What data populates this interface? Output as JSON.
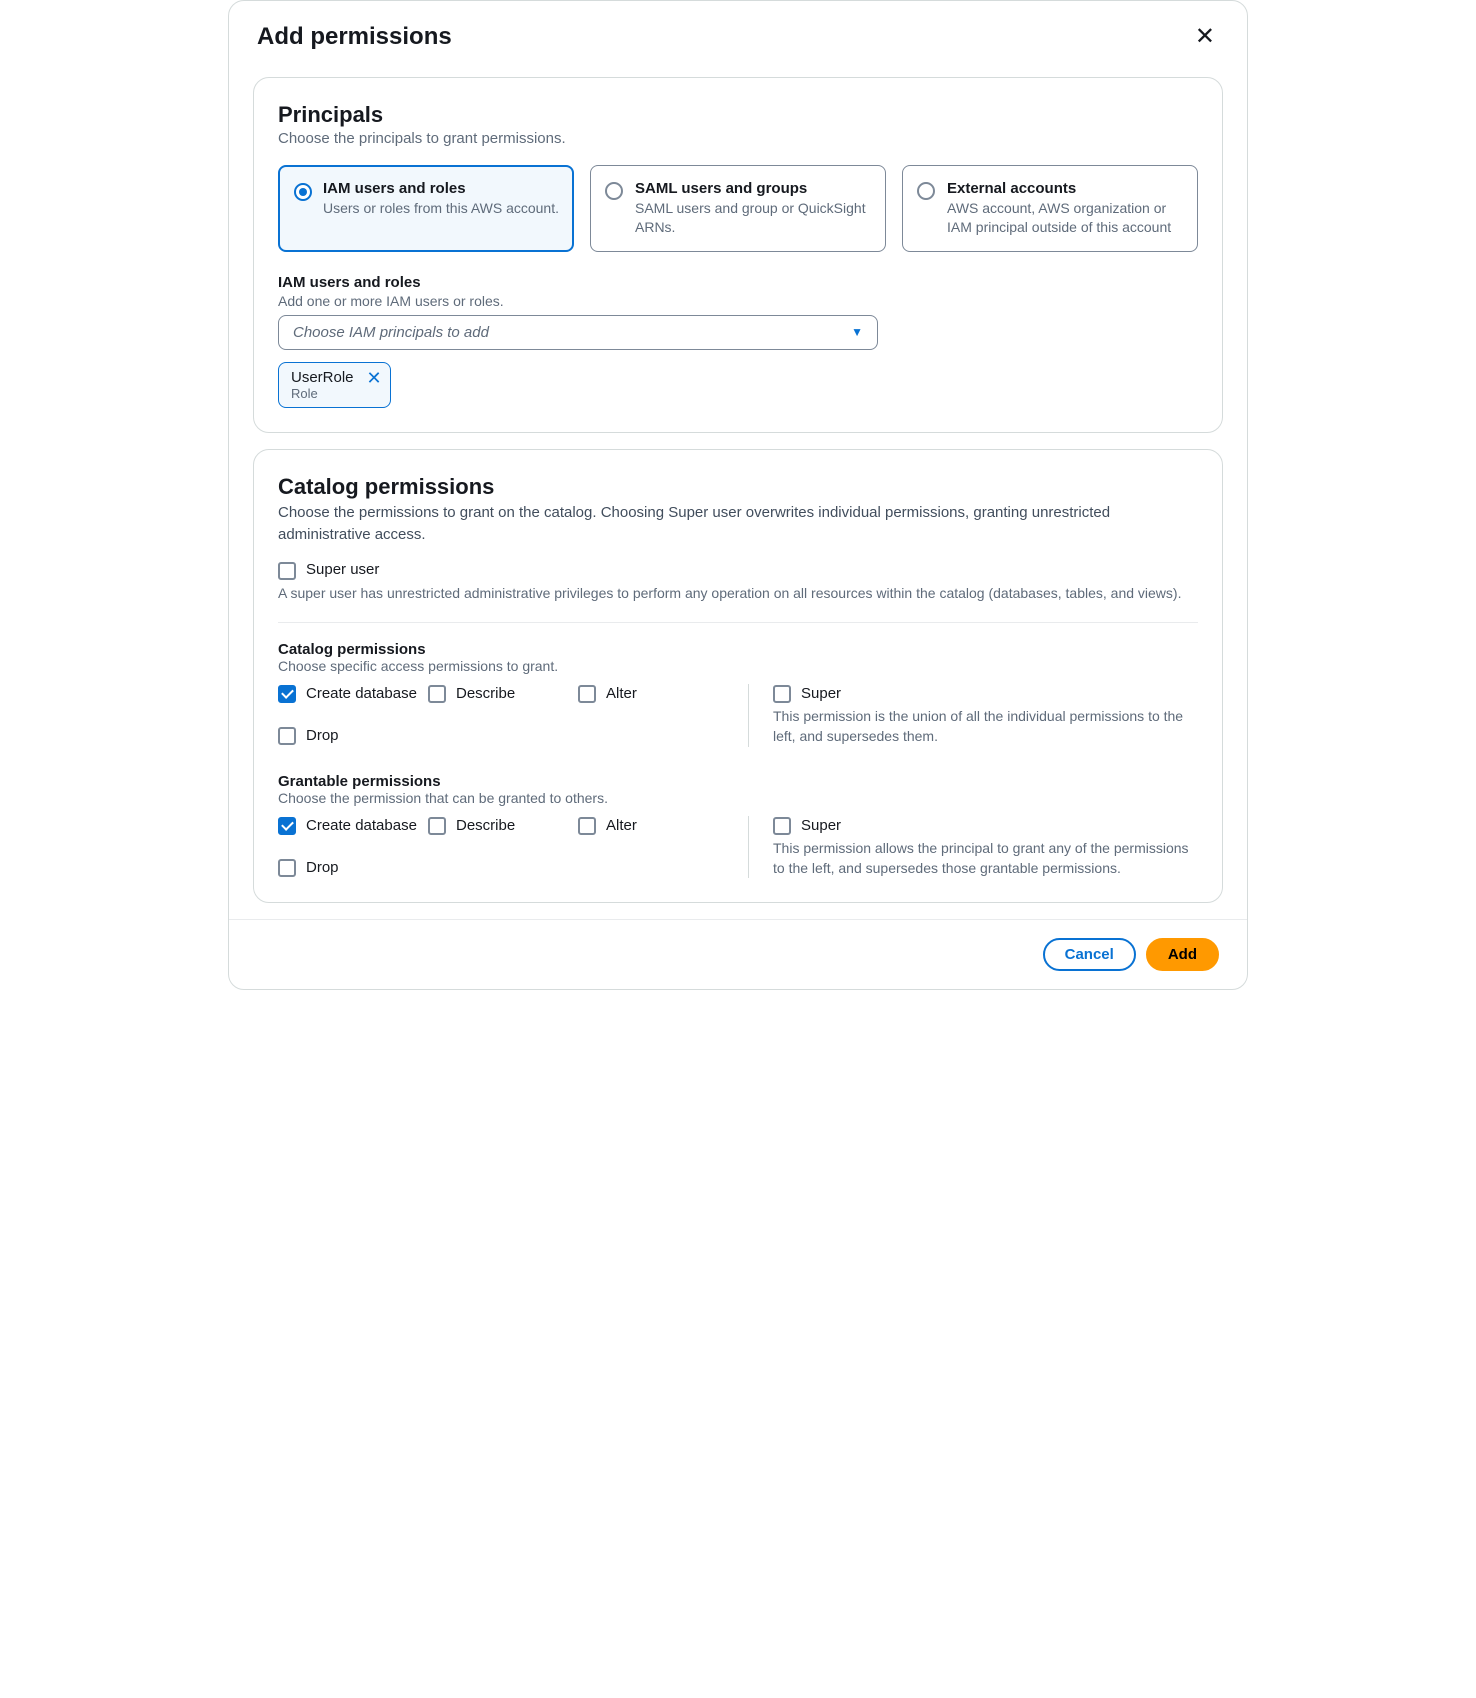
{
  "modal": {
    "title": "Add permissions"
  },
  "principals": {
    "heading": "Principals",
    "description": "Choose the principals to grant permissions.",
    "options": [
      {
        "title": "IAM users and roles",
        "desc": "Users or roles from this AWS account.",
        "selected": true
      },
      {
        "title": "SAML users and groups",
        "desc": "SAML users and group or QuickSight ARNs.",
        "selected": false
      },
      {
        "title": "External accounts",
        "desc": "AWS account, AWS organization or IAM principal outside of this account",
        "selected": false
      }
    ],
    "selector": {
      "label": "IAM users and roles",
      "sublabel": "Add one or more IAM users or roles.",
      "placeholder": "Choose IAM principals to add"
    },
    "tokens": [
      {
        "label": "UserRole",
        "type": "Role"
      }
    ]
  },
  "catalog": {
    "heading": "Catalog permissions",
    "description": "Choose the permissions to grant on the catalog. Choosing Super user overwrites individual permissions, granting unrestricted administrative access.",
    "super_user": {
      "label": "Super user",
      "desc": "A super user has unrestricted administrative privileges to perform any operation on all resources within the catalog (databases, tables, and views).",
      "checked": false
    },
    "perm_section": {
      "heading": "Catalog permissions",
      "sub": "Choose specific access permissions to grant.",
      "left": [
        {
          "name": "Create database",
          "checked": true
        },
        {
          "name": "Describe",
          "checked": false
        },
        {
          "name": "Alter",
          "checked": false
        },
        {
          "name": "Drop",
          "checked": false
        }
      ],
      "super": {
        "name": "Super",
        "checked": false,
        "desc": "This permission is the union of all the individual permissions to the left, and supersedes them."
      }
    },
    "grant_section": {
      "heading": "Grantable permissions",
      "sub": "Choose the permission that can be granted to others.",
      "left": [
        {
          "name": "Create database",
          "checked": true
        },
        {
          "name": "Describe",
          "checked": false
        },
        {
          "name": "Alter",
          "checked": false
        },
        {
          "name": "Drop",
          "checked": false
        }
      ],
      "super": {
        "name": "Super",
        "checked": false,
        "desc": "This permission allows the principal to grant any of the permissions to the left, and supersedes those grantable permissions."
      }
    }
  },
  "footer": {
    "cancel": "Cancel",
    "add": "Add"
  },
  "colors": {
    "accent": "#0972d3",
    "primary_button": "#ff9900",
    "border": "#d5dbdb",
    "text_muted": "#5f6b7a"
  }
}
